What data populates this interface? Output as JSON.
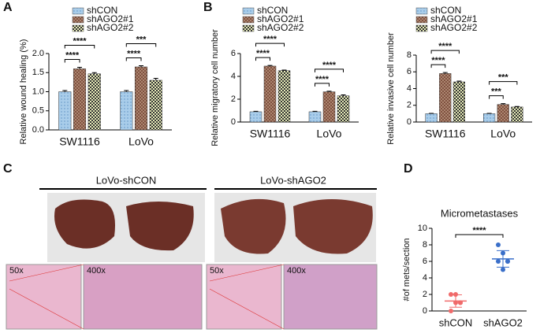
{
  "panel_labels": [
    "A",
    "B",
    "C",
    "D"
  ],
  "images": {
    "left_title": "LoVo-shCON",
    "right_title": "LoVo-shAGO2",
    "magnifications": [
      "50x",
      "400x",
      "50x",
      "400x"
    ]
  },
  "chart_data": [
    {
      "type": "bar",
      "ylabel": "Relative wound healing (%)",
      "categories": [
        "SW1116",
        "LoVo"
      ],
      "series": [
        {
          "name": "shCON",
          "color": "#a9cdea",
          "values": [
            1.0,
            1.0
          ],
          "errors": [
            0.03,
            0.03
          ]
        },
        {
          "name": "shAGO2#1",
          "color": "#7a4a3a",
          "values": [
            1.6,
            1.65
          ],
          "errors": [
            0.04,
            0.03
          ]
        },
        {
          "name": "shAGO2#2",
          "color": "#e8edb8",
          "values": [
            1.47,
            1.3
          ],
          "errors": [
            0.03,
            0.05
          ]
        }
      ],
      "ylim": [
        0,
        2
      ],
      "yticks": [
        {
          "value": 0,
          "label": "0.0"
        },
        {
          "value": 0.5,
          "label": "0.5"
        },
        {
          "value": 1,
          "label": "1.0"
        },
        {
          "value": 1.5,
          "label": "1.5"
        },
        {
          "value": 2,
          "label": "2.0"
        }
      ],
      "annotations": [
        "****",
        "****",
        "****",
        "***"
      ]
    },
    {
      "type": "bar",
      "ylabel": "Relative migratory cell number",
      "categories": [
        "SW1116",
        "LoVo"
      ],
      "series": [
        {
          "name": "shCON",
          "color": "#a9cdea",
          "values": [
            0.9,
            0.9
          ],
          "errors": [
            0.04,
            0.04
          ]
        },
        {
          "name": "shAGO2#1",
          "color": "#7a4a3a",
          "values": [
            4.9,
            2.65
          ],
          "errors": [
            0.06,
            0.05
          ]
        },
        {
          "name": "shAGO2#2",
          "color": "#e8edb8",
          "values": [
            4.5,
            2.3
          ],
          "errors": [
            0.05,
            0.08
          ]
        }
      ],
      "ylim": [
        0,
        6
      ],
      "yticks": [
        0,
        2,
        4,
        6
      ],
      "annotations": [
        "****",
        "****",
        "****",
        "****"
      ]
    },
    {
      "type": "bar",
      "ylabel": "Relative invasive cell number",
      "categories": [
        "SW1116",
        "LoVo"
      ],
      "series": [
        {
          "name": "shCON",
          "color": "#a9cdea",
          "values": [
            1.0,
            1.0
          ],
          "errors": [
            0.03,
            0.03
          ]
        },
        {
          "name": "shAGO2#1",
          "color": "#7a4a3a",
          "values": [
            5.8,
            2.1
          ],
          "errors": [
            0.12,
            0.1
          ]
        },
        {
          "name": "shAGO2#2",
          "color": "#e8edb8",
          "values": [
            4.8,
            1.8
          ],
          "errors": [
            0.1,
            0.06
          ]
        }
      ],
      "ylim": [
        0,
        8
      ],
      "yticks": [
        0,
        2,
        4,
        6,
        8
      ],
      "annotations": [
        "****",
        "****",
        "***",
        "***"
      ]
    },
    {
      "type": "scatter",
      "title": "Micrometastases",
      "ylabel": "#of mets/section",
      "categories": [
        "shCON",
        "shAGO2"
      ],
      "series": [
        {
          "name": "shCON",
          "color": "#f06a6a",
          "values": [
            0,
            1,
            1,
            2,
            2,
            1
          ],
          "mean": 1.2,
          "sd": 0.75
        },
        {
          "name": "shAGO2",
          "color": "#3a6fc9",
          "values": [
            8,
            7,
            6,
            6,
            5,
            6
          ],
          "mean": 6.3,
          "sd": 1.0
        }
      ],
      "ylim": [
        0,
        10
      ],
      "yticks": [
        0,
        2,
        4,
        6,
        8,
        10
      ],
      "annotations": [
        "****"
      ]
    }
  ]
}
